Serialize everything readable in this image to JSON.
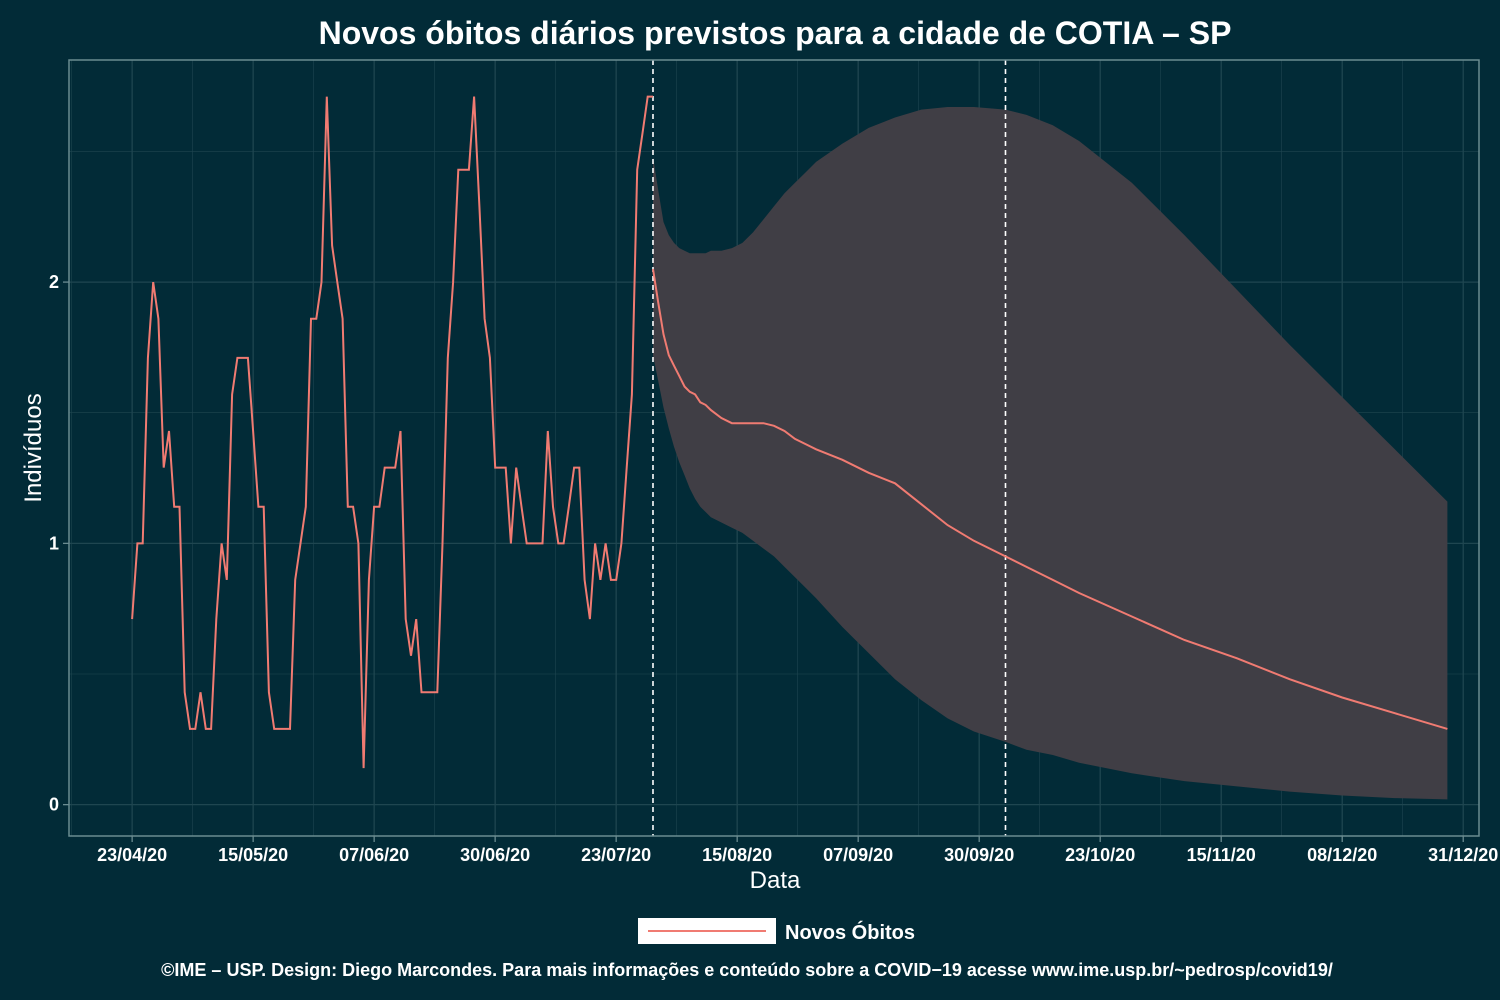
{
  "chart_data": {
    "type": "line",
    "title": "Novos óbitos diários previstos para a cidade de COTIA – SP",
    "xlabel": "Data",
    "ylabel": "Indivíduos",
    "x_tick_labels": [
      "23/04/20",
      "15/05/20",
      "07/06/20",
      "30/06/20",
      "23/07/20",
      "15/08/20",
      "07/09/20",
      "30/09/20",
      "23/10/20",
      "15/11/20",
      "08/12/20",
      "31/12/20"
    ],
    "y_ticks": [
      0,
      1,
      2
    ],
    "ylim": [
      -0.12,
      2.85
    ],
    "x_domain_days": [
      -12,
      256
    ],
    "grid": true,
    "legend_position": "bottom",
    "vertical_markers_day": [
      99,
      166
    ],
    "colors": {
      "background": "#022b37",
      "line": "#f07b72",
      "band": "#403e45",
      "grid": "#1f4650",
      "axis": "#6b8c91",
      "marker": "#ffffff"
    },
    "series": [
      {
        "name": "Novos Óbitos",
        "observed": {
          "x": [
            0,
            1,
            2,
            3,
            4,
            5,
            6,
            7,
            8,
            9,
            10,
            11,
            12,
            13,
            14,
            15,
            16,
            17,
            18,
            19,
            20,
            21,
            22,
            23,
            24,
            25,
            26,
            27,
            28,
            29,
            30,
            31,
            32,
            33,
            34,
            35,
            36,
            37,
            38,
            39,
            40,
            41,
            42,
            43,
            44,
            45,
            46,
            47,
            48,
            49,
            50,
            51,
            52,
            53,
            54,
            55,
            56,
            57,
            58,
            59,
            60,
            61,
            62,
            63,
            64,
            65,
            66,
            67,
            68,
            69,
            70,
            71,
            72,
            73,
            74,
            75,
            76,
            77,
            78,
            79,
            80,
            81,
            82,
            83,
            84,
            85,
            86,
            87,
            88,
            89,
            90,
            91,
            92,
            93,
            94,
            95,
            96,
            97,
            98,
            99
          ],
          "y": [
            0.71,
            1.0,
            1.0,
            1.71,
            2.0,
            1.86,
            1.29,
            1.43,
            1.14,
            1.14,
            0.43,
            0.29,
            0.29,
            0.43,
            0.29,
            0.29,
            0.71,
            1.0,
            0.86,
            1.57,
            1.71,
            1.71,
            1.71,
            1.43,
            1.14,
            1.14,
            0.43,
            0.29,
            0.29,
            0.29,
            0.29,
            0.86,
            1.0,
            1.14,
            1.86,
            1.86,
            2.0,
            2.71,
            2.14,
            2.0,
            1.86,
            1.14,
            1.14,
            1.0,
            0.14,
            0.86,
            1.14,
            1.14,
            1.29,
            1.29,
            1.29,
            1.43,
            0.71,
            0.57,
            0.71,
            0.43,
            0.43,
            0.43,
            0.43,
            1.0,
            1.71,
            2.0,
            2.43,
            2.43,
            2.43,
            2.71,
            2.29,
            1.86,
            1.71,
            1.29,
            1.29,
            1.29,
            1.0,
            1.29,
            1.14,
            1.0,
            1.0,
            1.0,
            1.0,
            1.43,
            1.14,
            1.0,
            1.0,
            1.14,
            1.29,
            1.29,
            0.86,
            0.71,
            1.0,
            0.86,
            1.0,
            0.86,
            0.86,
            1.0,
            1.29,
            1.57,
            2.43,
            2.57,
            2.71,
            2.71
          ]
        },
        "forecast": {
          "x": [
            99,
            100,
            101,
            102,
            103,
            104,
            105,
            106,
            107,
            108,
            109,
            110,
            112,
            114,
            116,
            118,
            120,
            122,
            124,
            126,
            128,
            130,
            135,
            140,
            145,
            150,
            155,
            160,
            166,
            170,
            175,
            180,
            190,
            200,
            210,
            220,
            230,
            240,
            250
          ],
          "y": [
            2.05,
            1.92,
            1.8,
            1.72,
            1.68,
            1.64,
            1.6,
            1.58,
            1.57,
            1.54,
            1.53,
            1.51,
            1.48,
            1.46,
            1.46,
            1.46,
            1.46,
            1.45,
            1.43,
            1.4,
            1.38,
            1.36,
            1.32,
            1.27,
            1.23,
            1.15,
            1.07,
            1.01,
            0.95,
            0.91,
            0.86,
            0.81,
            0.72,
            0.63,
            0.56,
            0.48,
            0.41,
            0.35,
            0.29
          ],
          "lower": [
            1.72,
            1.62,
            1.52,
            1.44,
            1.37,
            1.31,
            1.26,
            1.21,
            1.17,
            1.14,
            1.12,
            1.1,
            1.08,
            1.06,
            1.04,
            1.01,
            0.98,
            0.95,
            0.91,
            0.87,
            0.83,
            0.79,
            0.68,
            0.58,
            0.48,
            0.4,
            0.33,
            0.28,
            0.24,
            0.21,
            0.19,
            0.16,
            0.12,
            0.09,
            0.07,
            0.05,
            0.035,
            0.025,
            0.02
          ],
          "upper": [
            2.48,
            2.35,
            2.23,
            2.18,
            2.15,
            2.13,
            2.12,
            2.11,
            2.11,
            2.11,
            2.11,
            2.12,
            2.12,
            2.13,
            2.15,
            2.19,
            2.24,
            2.29,
            2.34,
            2.38,
            2.42,
            2.46,
            2.53,
            2.59,
            2.63,
            2.66,
            2.67,
            2.67,
            2.66,
            2.64,
            2.6,
            2.54,
            2.38,
            2.18,
            1.97,
            1.76,
            1.56,
            1.36,
            1.16
          ]
        }
      }
    ]
  },
  "legend": {
    "label": "Novos Óbitos"
  },
  "caption": "©IME – USP. Design: Diego Marcondes. Para mais informações e conteúdo sobre a COVID−19 acesse www.ime.usp.br/~pedrosp/covid19/"
}
